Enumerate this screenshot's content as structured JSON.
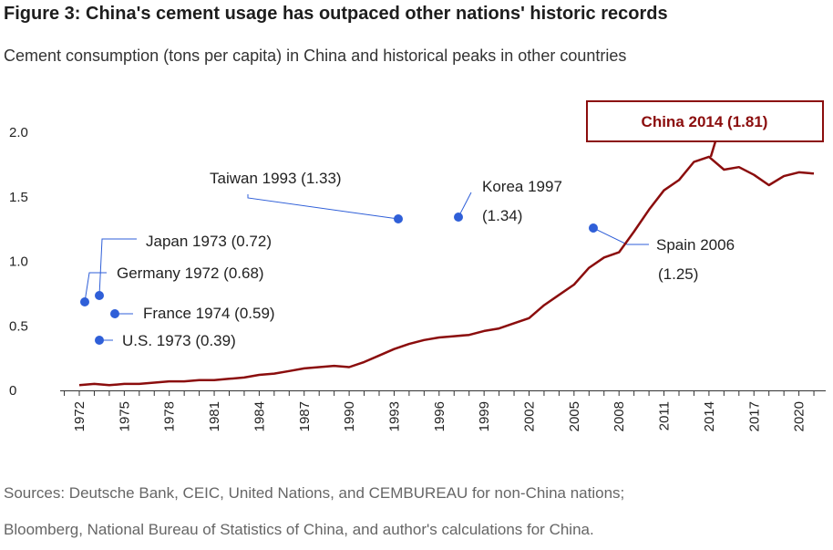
{
  "header": {
    "title": "Figure 3: China's cement usage has outpaced other nations' historic records",
    "subtitle": "Cement consumption (tons per capita) in China and historical peaks in other countries"
  },
  "sources": {
    "line1": "Sources: Deutsche Bank, CEIC, United Nations, and CEMBUREAU for non-China nations;",
    "line2": "Bloomberg, National Bureau of Statistics of China, and author's calculations for China."
  },
  "chart_data": {
    "type": "line",
    "title": "Figure 3: China's cement usage has outpaced other nations' historic records",
    "subtitle": "Cement consumption (tons per capita) in China and historical peaks in other countries",
    "xlabel": "",
    "ylabel": "",
    "xlim": [
      1971,
      2022
    ],
    "ylim": [
      0,
      2.0
    ],
    "y_ticks": [
      0,
      0.5,
      1.0,
      1.5,
      2.0
    ],
    "y_tick_labels": [
      "0",
      "0.5",
      "1.0",
      "1.5",
      "2.0"
    ],
    "x_ticks": [
      1972,
      1975,
      1978,
      1981,
      1984,
      1987,
      1990,
      1993,
      1996,
      1999,
      2002,
      2005,
      2008,
      2011,
      2014,
      2017,
      2020
    ],
    "grid": false,
    "legend": "none",
    "colors": {
      "china": "#8b0d0d",
      "peaks": "#2f5fd8",
      "leader": "#2f5fd8",
      "axis": "#333333"
    },
    "series": [
      {
        "x": [
          1972,
          1973,
          1974,
          1975,
          1976,
          1977,
          1978,
          1979,
          1980,
          1981,
          1982,
          1983,
          1984,
          1985,
          1986,
          1987,
          1988,
          1989,
          1990,
          1991,
          1992,
          1993,
          1994,
          1995,
          1996,
          1997,
          1998,
          1999,
          2000,
          2001,
          2002,
          2003,
          2004,
          2005,
          2006,
          2007,
          2008,
          2009,
          2010,
          2011,
          2012,
          2013,
          2014,
          2015,
          2016,
          2017,
          2018,
          2019,
          2020,
          2021
        ],
        "values": [
          0.04,
          0.05,
          0.04,
          0.05,
          0.05,
          0.06,
          0.07,
          0.07,
          0.08,
          0.08,
          0.09,
          0.1,
          0.12,
          0.13,
          0.15,
          0.17,
          0.18,
          0.19,
          0.18,
          0.22,
          0.27,
          0.32,
          0.36,
          0.39,
          0.41,
          0.42,
          0.43,
          0.46,
          0.48,
          0.52,
          0.56,
          0.66,
          0.74,
          0.82,
          0.95,
          1.03,
          1.07,
          1.23,
          1.4,
          1.55,
          1.63,
          1.77,
          1.81,
          1.71,
          1.73,
          1.67,
          1.59,
          1.66,
          1.69,
          1.68
        ]
      }
    ],
    "peaks": [
      {
        "country": "Japan",
        "year": 1973,
        "value": 0.72,
        "label": "Japan 1973 (0.72)"
      },
      {
        "country": "Germany",
        "year": 1972,
        "value": 0.68,
        "label": "Germany 1972 (0.68)"
      },
      {
        "country": "France",
        "year": 1974,
        "value": 0.59,
        "label": "France 1974 (0.59)"
      },
      {
        "country": "U.S.",
        "year": 1973,
        "value": 0.39,
        "label": "U.S. 1973 (0.39)"
      },
      {
        "country": "Taiwan",
        "year": 1993,
        "value": 1.33,
        "label": "Taiwan 1993 (1.33)"
      },
      {
        "country": "Korea",
        "year": 1997,
        "value": 1.34,
        "label_line1": "Korea 1997",
        "label_line2": "(1.34)"
      },
      {
        "country": "Spain",
        "year": 2006,
        "value": 1.25,
        "label_line1": "Spain 2006",
        "label_line2": "(1.25)"
      }
    ],
    "china_annotation": {
      "year": 2014,
      "value": 1.81,
      "label": "China 2014 (1.81)"
    }
  }
}
